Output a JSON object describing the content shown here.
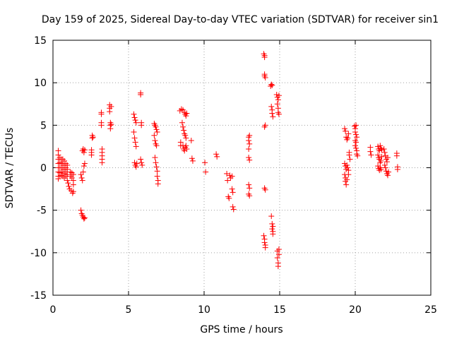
{
  "chart_data": {
    "type": "scatter",
    "title": "Day 159 of 2025, Sidereal Day-to-day VTEC variation (SDTVAR) for receiver sin1",
    "xlabel": "GPS time / hours",
    "ylabel": "SDTVAR / TECUs",
    "xlim": [
      0,
      25
    ],
    "ylim": [
      -15,
      15
    ],
    "xticks": [
      0,
      5,
      10,
      15,
      20,
      25
    ],
    "yticks": [
      -15,
      -10,
      -5,
      0,
      5,
      10,
      15
    ],
    "grid": true,
    "marker": "+",
    "color": "#ff0000",
    "series": [
      {
        "name": "SDTVAR",
        "points": [
          [
            0.35,
            2.0
          ],
          [
            0.35,
            1.5
          ],
          [
            0.35,
            1.0
          ],
          [
            0.35,
            0.5
          ],
          [
            0.35,
            0.0
          ],
          [
            0.35,
            -0.5
          ],
          [
            0.35,
            -1.0
          ],
          [
            0.35,
            -1.3
          ],
          [
            0.45,
            1.2
          ],
          [
            0.45,
            0.6
          ],
          [
            0.45,
            0.0
          ],
          [
            0.45,
            -0.6
          ],
          [
            0.45,
            -1.0
          ],
          [
            0.55,
            1.0
          ],
          [
            0.55,
            0.5
          ],
          [
            0.55,
            0.0
          ],
          [
            0.55,
            -0.5
          ],
          [
            0.55,
            -0.9
          ],
          [
            0.65,
            1.0
          ],
          [
            0.65,
            0.5
          ],
          [
            0.65,
            0.0
          ],
          [
            0.65,
            -0.5
          ],
          [
            0.65,
            -1.0
          ],
          [
            0.75,
            0.8
          ],
          [
            0.75,
            0.3
          ],
          [
            0.75,
            -0.2
          ],
          [
            0.75,
            -0.7
          ],
          [
            0.75,
            -1.2
          ],
          [
            0.85,
            0.5
          ],
          [
            0.85,
            0.0
          ],
          [
            0.85,
            -0.5
          ],
          [
            0.85,
            -1.0
          ],
          [
            0.95,
            0.3
          ],
          [
            0.95,
            -0.2
          ],
          [
            0.95,
            -0.8
          ],
          [
            0.95,
            -1.5
          ],
          [
            1.0,
            -1.8
          ],
          [
            1.05,
            -2.2
          ],
          [
            1.1,
            -2.5
          ],
          [
            1.15,
            -0.5
          ],
          [
            1.15,
            -1.0
          ],
          [
            1.2,
            -2.7
          ],
          [
            1.25,
            -0.6
          ],
          [
            1.25,
            -1.2
          ],
          [
            1.3,
            -3.0
          ],
          [
            1.35,
            -0.8
          ],
          [
            1.35,
            -1.5
          ],
          [
            1.35,
            -2.0
          ],
          [
            1.35,
            -2.8
          ],
          [
            1.85,
            -5.0
          ],
          [
            1.9,
            -5.4
          ],
          [
            1.95,
            -5.6
          ],
          [
            2.0,
            -5.8
          ],
          [
            2.05,
            -6.0
          ],
          [
            2.1,
            -5.9
          ],
          [
            1.85,
            -0.8
          ],
          [
            1.9,
            -1.2
          ],
          [
            1.95,
            -1.5
          ],
          [
            2.0,
            -0.5
          ],
          [
            2.05,
            0.2
          ],
          [
            2.1,
            0.5
          ],
          [
            1.95,
            2.0
          ],
          [
            2.0,
            2.2
          ],
          [
            2.05,
            1.8
          ],
          [
            2.1,
            2.1
          ],
          [
            2.55,
            1.8
          ],
          [
            2.55,
            2.1
          ],
          [
            2.55,
            1.5
          ],
          [
            2.6,
            3.5
          ],
          [
            2.6,
            3.8
          ],
          [
            2.65,
            3.6
          ],
          [
            3.2,
            6.3
          ],
          [
            3.2,
            6.5
          ],
          [
            3.2,
            5.3
          ],
          [
            3.2,
            5.0
          ],
          [
            3.25,
            2.2
          ],
          [
            3.25,
            1.8
          ],
          [
            3.25,
            1.4
          ],
          [
            3.25,
            1.0
          ],
          [
            3.25,
            0.6
          ],
          [
            3.75,
            7.4
          ],
          [
            3.75,
            7.0
          ],
          [
            3.75,
            6.6
          ],
          [
            3.8,
            5.3
          ],
          [
            3.8,
            5.0
          ],
          [
            3.8,
            4.6
          ],
          [
            3.85,
            7.2
          ],
          [
            3.85,
            5.1
          ],
          [
            5.35,
            6.3
          ],
          [
            5.4,
            5.9
          ],
          [
            5.45,
            5.6
          ],
          [
            5.5,
            5.3
          ],
          [
            5.35,
            4.2
          ],
          [
            5.4,
            3.5
          ],
          [
            5.45,
            3.0
          ],
          [
            5.5,
            2.5
          ],
          [
            5.4,
            0.6
          ],
          [
            5.45,
            0.3
          ],
          [
            5.5,
            0.1
          ],
          [
            5.55,
            0.5
          ],
          [
            5.8,
            8.8
          ],
          [
            5.8,
            8.6
          ],
          [
            5.85,
            5.3
          ],
          [
            5.85,
            5.0
          ],
          [
            5.8,
            1.0
          ],
          [
            5.85,
            0.6
          ],
          [
            5.9,
            0.3
          ],
          [
            6.7,
            5.2
          ],
          [
            6.75,
            5.0
          ],
          [
            6.8,
            4.8
          ],
          [
            6.85,
            4.5
          ],
          [
            6.9,
            4.2
          ],
          [
            6.7,
            3.8
          ],
          [
            6.75,
            3.2
          ],
          [
            6.8,
            2.8
          ],
          [
            6.85,
            2.6
          ],
          [
            6.75,
            1.2
          ],
          [
            6.8,
            0.6
          ],
          [
            6.85,
            0.1
          ],
          [
            6.9,
            -0.4
          ],
          [
            6.9,
            -1.0
          ],
          [
            6.95,
            -1.5
          ],
          [
            6.95,
            -1.9
          ],
          [
            8.4,
            6.7
          ],
          [
            8.5,
            6.9
          ],
          [
            8.6,
            6.8
          ],
          [
            8.7,
            6.5
          ],
          [
            8.75,
            6.3
          ],
          [
            8.8,
            6.1
          ],
          [
            8.85,
            6.4
          ],
          [
            8.55,
            5.3
          ],
          [
            8.6,
            4.8
          ],
          [
            8.65,
            4.4
          ],
          [
            8.7,
            4.0
          ],
          [
            8.75,
            3.8
          ],
          [
            8.8,
            3.5
          ],
          [
            8.45,
            3.0
          ],
          [
            8.45,
            2.6
          ],
          [
            8.6,
            2.6
          ],
          [
            8.65,
            2.2
          ],
          [
            8.7,
            2.0
          ],
          [
            8.75,
            2.4
          ],
          [
            8.8,
            2.6
          ],
          [
            8.85,
            2.2
          ],
          [
            9.15,
            3.2
          ],
          [
            9.2,
            1.1
          ],
          [
            9.25,
            0.8
          ],
          [
            10.05,
            0.6
          ],
          [
            10.1,
            -0.5
          ],
          [
            10.8,
            1.6
          ],
          [
            10.85,
            1.3
          ],
          [
            11.5,
            -0.7
          ],
          [
            11.55,
            -1.5
          ],
          [
            11.6,
            -3.4
          ],
          [
            11.65,
            -3.6
          ],
          [
            11.7,
            -0.9
          ],
          [
            11.75,
            -1.2
          ],
          [
            11.85,
            -1.0
          ],
          [
            11.85,
            -2.5
          ],
          [
            11.9,
            -2.9
          ],
          [
            11.9,
            -4.6
          ],
          [
            11.95,
            -4.9
          ],
          [
            12.95,
            3.6
          ],
          [
            13.0,
            3.8
          ],
          [
            12.95,
            3.2
          ],
          [
            13.0,
            2.8
          ],
          [
            12.95,
            2.2
          ],
          [
            12.95,
            1.2
          ],
          [
            13.0,
            0.9
          ],
          [
            12.95,
            -2.0
          ],
          [
            13.0,
            -2.4
          ],
          [
            12.95,
            -3.1
          ],
          [
            13.0,
            -3.3
          ],
          [
            13.95,
            13.4
          ],
          [
            14.0,
            13.2
          ],
          [
            14.0,
            13.0
          ],
          [
            14.0,
            11.0
          ],
          [
            14.0,
            10.8
          ],
          [
            14.05,
            10.6
          ],
          [
            14.0,
            4.8
          ],
          [
            14.05,
            5.0
          ],
          [
            14.0,
            -2.4
          ],
          [
            14.05,
            -2.6
          ],
          [
            13.95,
            -8.0
          ],
          [
            14.0,
            -8.4
          ],
          [
            14.0,
            -8.8
          ],
          [
            14.05,
            -9.1
          ],
          [
            14.05,
            -9.4
          ],
          [
            14.4,
            9.6
          ],
          [
            14.45,
            9.8
          ],
          [
            14.5,
            9.7
          ],
          [
            14.45,
            7.2
          ],
          [
            14.5,
            6.8
          ],
          [
            14.5,
            6.4
          ],
          [
            14.55,
            6.0
          ],
          [
            14.45,
            -5.7
          ],
          [
            14.5,
            -6.6
          ],
          [
            14.55,
            -6.9
          ],
          [
            14.5,
            -7.2
          ],
          [
            14.55,
            -7.5
          ],
          [
            14.55,
            -7.8
          ],
          [
            14.8,
            8.6
          ],
          [
            14.85,
            8.3
          ],
          [
            14.9,
            8.0
          ],
          [
            14.95,
            8.5
          ],
          [
            14.85,
            7.5
          ],
          [
            14.9,
            7.0
          ],
          [
            14.9,
            6.5
          ],
          [
            14.95,
            6.3
          ],
          [
            14.85,
            -9.8
          ],
          [
            14.85,
            -10.6
          ],
          [
            14.9,
            -11.2
          ],
          [
            14.9,
            -11.6
          ],
          [
            14.95,
            -10.2
          ],
          [
            14.95,
            -9.6
          ],
          [
            19.3,
            4.6
          ],
          [
            19.35,
            4.3
          ],
          [
            19.4,
            3.6
          ],
          [
            19.45,
            3.3
          ],
          [
            19.5,
            3.5
          ],
          [
            19.55,
            4.0
          ],
          [
            19.3,
            0.5
          ],
          [
            19.35,
            0.2
          ],
          [
            19.4,
            -0.2
          ],
          [
            19.45,
            0.3
          ],
          [
            19.5,
            0.0
          ],
          [
            19.55,
            -0.3
          ],
          [
            19.3,
            -0.8
          ],
          [
            19.35,
            -1.2
          ],
          [
            19.35,
            -1.6
          ],
          [
            19.4,
            -2.0
          ],
          [
            19.45,
            -1.4
          ],
          [
            19.55,
            -0.8
          ],
          [
            19.6,
            1.8
          ],
          [
            19.6,
            1.5
          ],
          [
            19.65,
            1.0
          ],
          [
            19.95,
            4.9
          ],
          [
            20.0,
            4.6
          ],
          [
            20.05,
            5.0
          ],
          [
            20.0,
            4.2
          ],
          [
            20.05,
            3.9
          ],
          [
            20.1,
            3.6
          ],
          [
            20.0,
            3.2
          ],
          [
            20.05,
            3.0
          ],
          [
            20.0,
            2.6
          ],
          [
            20.05,
            2.3
          ],
          [
            20.1,
            2.0
          ],
          [
            20.1,
            1.6
          ],
          [
            20.15,
            1.4
          ],
          [
            21.0,
            2.4
          ],
          [
            21.0,
            1.9
          ],
          [
            21.05,
            1.5
          ],
          [
            21.5,
            2.5
          ],
          [
            21.55,
            2.2
          ],
          [
            21.6,
            2.0
          ],
          [
            21.65,
            2.6
          ],
          [
            21.7,
            2.3
          ],
          [
            21.75,
            2.1
          ],
          [
            21.5,
            1.5
          ],
          [
            21.55,
            1.2
          ],
          [
            21.6,
            1.0
          ],
          [
            21.65,
            0.6
          ],
          [
            21.7,
            0.8
          ],
          [
            21.75,
            1.3
          ],
          [
            21.5,
            0.2
          ],
          [
            21.55,
            -0.1
          ],
          [
            21.6,
            -0.3
          ],
          [
            21.65,
            0.0
          ],
          [
            21.7,
            -0.2
          ],
          [
            21.9,
            2.2
          ],
          [
            21.95,
            1.8
          ],
          [
            22.0,
            1.4
          ],
          [
            22.05,
            1.0
          ],
          [
            22.1,
            0.7
          ],
          [
            22.15,
            1.2
          ],
          [
            21.95,
            0.3
          ],
          [
            22.0,
            0.0
          ],
          [
            22.05,
            -0.4
          ],
          [
            22.1,
            -0.7
          ],
          [
            22.15,
            -0.9
          ],
          [
            22.2,
            -0.5
          ],
          [
            22.75,
            1.7
          ],
          [
            22.75,
            1.4
          ],
          [
            22.8,
            0.1
          ],
          [
            22.8,
            -0.2
          ]
        ]
      }
    ]
  }
}
